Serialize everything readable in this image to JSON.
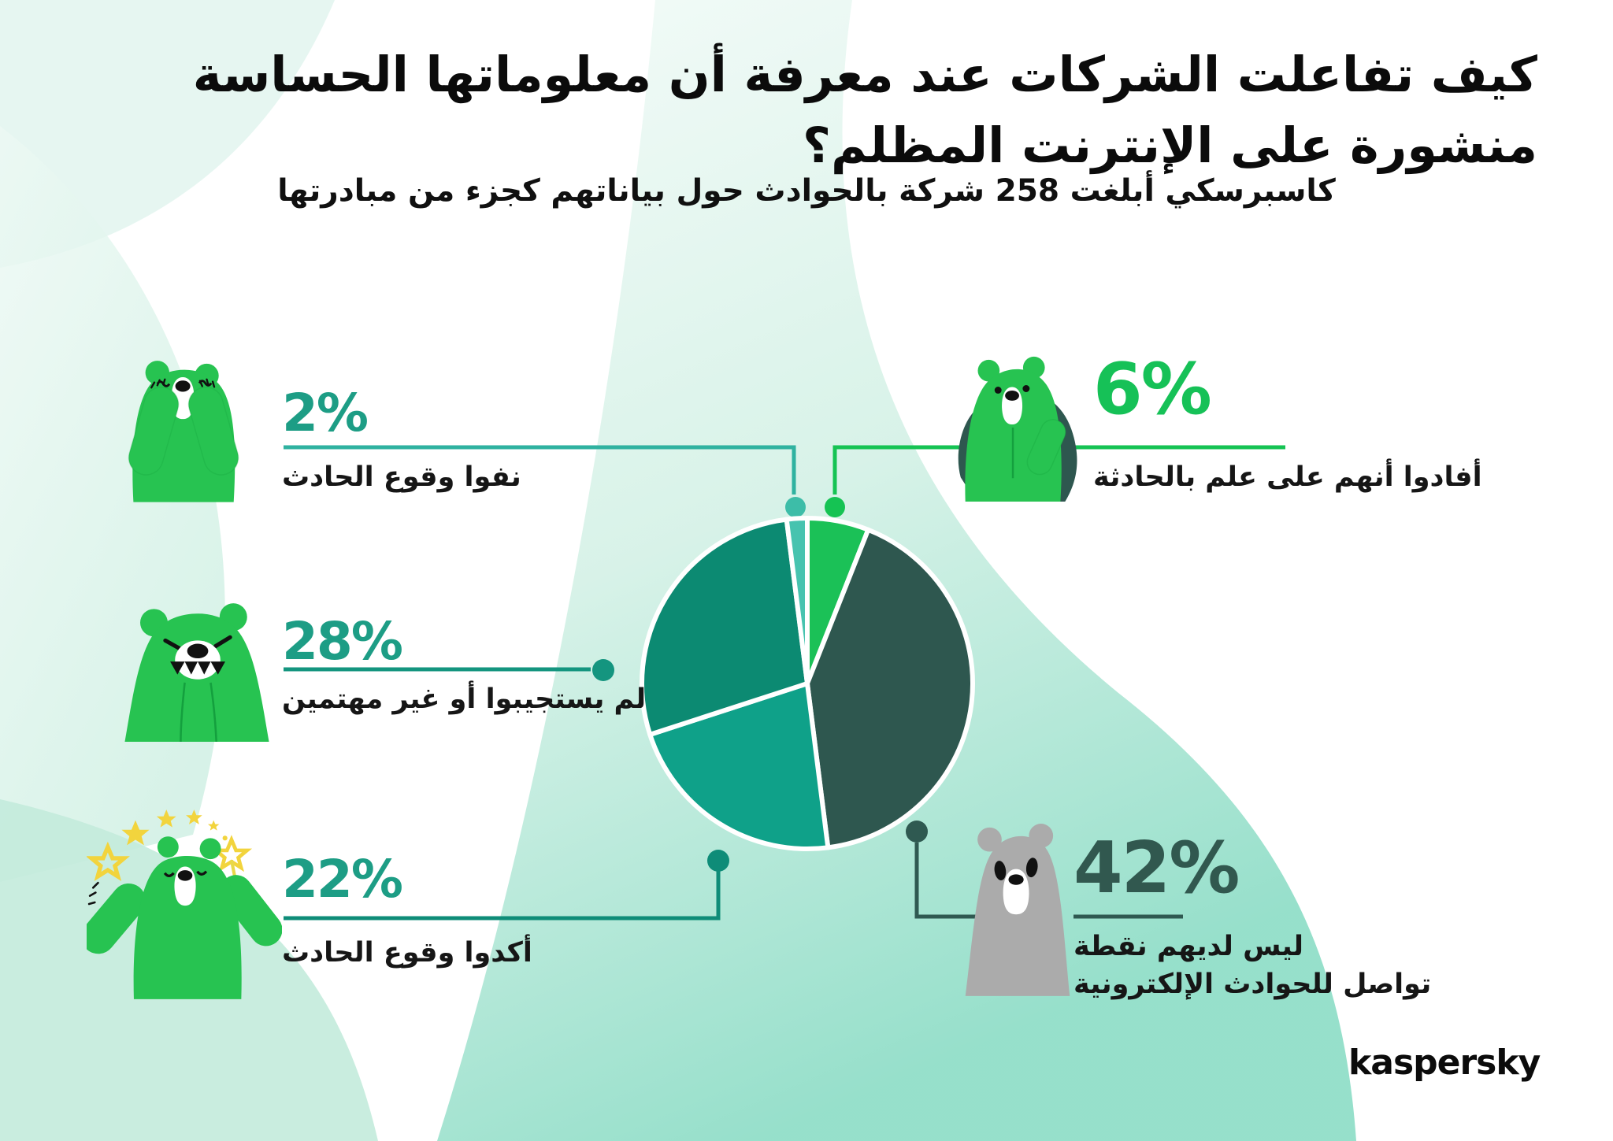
{
  "header": {
    "title_line1": "كيف تفاعلت الشركات عند معرفة أن معلوماتها الحساسة",
    "title_line2": "منشورة على الإنترنت المظلم؟",
    "subtitle": "كاسبرسكي أبلغت 258 شركة بالحوادث حول بياناتهم كجزء من مبادرتها"
  },
  "stats": {
    "denied": {
      "value": "2%",
      "label": "نفوا وقوع الحادث",
      "accent": "#1D9D85"
    },
    "aware": {
      "value": "6%",
      "label": "أفادوا أنهم على علم بالحادثة",
      "accent": "#16C157"
    },
    "no_response": {
      "value": "28%",
      "label": "لم يستجيبوا أو غير مهتمين",
      "accent": "#1D9D85"
    },
    "confirmed": {
      "value": "22%",
      "label": "أكدوا وقوع الحادث",
      "accent": "#1D9D85"
    },
    "no_contact": {
      "value": "42%",
      "label_line1": "ليس لديهم نقطة",
      "label_line2": "تواصل للحوادث الإلكترونية",
      "accent": "#31584F"
    }
  },
  "chart_data": {
    "type": "pie",
    "title": "كيف تفاعلت الشركات عند معرفة أن معلوماتها الحساسة منشورة على الإنترنت المظلم؟",
    "units": "%",
    "total": 100,
    "start_angle_deg": 0,
    "direction": "clockwise",
    "slices": [
      {
        "key": "aware",
        "label": "أفادوا أنهم على علم بالحادثة",
        "value": 6,
        "color": "#1BC157"
      },
      {
        "key": "no_contact",
        "label": "ليس لديهم نقطة تواصل للحوادث الإلكترونية",
        "value": 42,
        "color": "#2E574F"
      },
      {
        "key": "confirmed",
        "label": "أكدوا وقوع الحادث",
        "value": 22,
        "color": "#0FA189"
      },
      {
        "key": "no_response",
        "label": "لم يستجيبوا أو غير مهتمين",
        "value": 28,
        "color": "#0C8A72"
      },
      {
        "key": "denied",
        "label": "نفوا وقوع الحادث",
        "value": 2,
        "color": "#47C3AF"
      }
    ],
    "legend_position": "callouts",
    "grid": false
  },
  "footer": {
    "logo": "kaspersky"
  }
}
